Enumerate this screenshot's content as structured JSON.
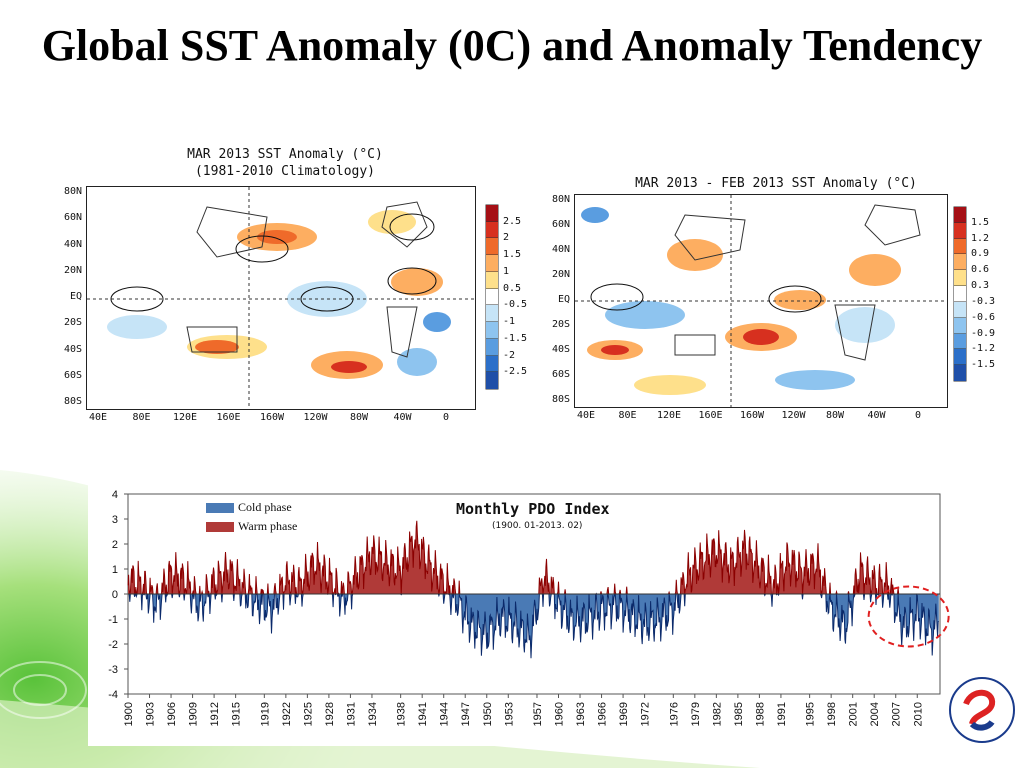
{
  "slide": {
    "title": "Global SST Anomaly (0C) and Anomaly Tendency"
  },
  "colors": {
    "warm": "#b03a38",
    "cold": "#4a7ab5",
    "warm_edge": "#8b0000",
    "cold_edge": "#0b2a6b",
    "highlight_ring": "#e02020"
  },
  "chart_data": [
    {
      "type": "heatmap",
      "title": "MAR 2013 SST Anomaly (°C)",
      "subtitle": "(1981-2010 Climatology)",
      "y_ticks": [
        "80N",
        "60N",
        "40N",
        "20N",
        "EQ",
        "20S",
        "40S",
        "60S",
        "80S"
      ],
      "x_ticks": [
        "40E",
        "80E",
        "120E",
        "160E",
        "160W",
        "120W",
        "80W",
        "40W",
        "0"
      ],
      "colorbar": [
        "2.5",
        "2",
        "1.5",
        "1",
        "0.5",
        "-0.5",
        "-1",
        "-1.5",
        "-2",
        "-2.5"
      ],
      "colorbar_colors": [
        "#a50f15",
        "#d7301f",
        "#ef6a2a",
        "#fdae61",
        "#fee08b",
        "#ffffff",
        "#c6e4f7",
        "#8ec4ef",
        "#5a9de0",
        "#2b6fc9",
        "#1f4fa8"
      ]
    },
    {
      "type": "heatmap",
      "title": "MAR 2013 - FEB 2013 SST Anomaly (°C)",
      "y_ticks": [
        "80N",
        "60N",
        "40N",
        "20N",
        "EQ",
        "20S",
        "40S",
        "60S",
        "80S"
      ],
      "x_ticks": [
        "40E",
        "80E",
        "120E",
        "160E",
        "160W",
        "120W",
        "80W",
        "40W",
        "0"
      ],
      "colorbar": [
        "1.5",
        "1.2",
        "0.9",
        "0.6",
        "0.3",
        "-0.3",
        "-0.6",
        "-0.9",
        "-1.2",
        "-1.5"
      ],
      "colorbar_colors": [
        "#a50f15",
        "#d7301f",
        "#ef6a2a",
        "#fdae61",
        "#fee08b",
        "#ffffff",
        "#c6e4f7",
        "#8ec4ef",
        "#5a9de0",
        "#2b6fc9",
        "#1f4fa8"
      ]
    },
    {
      "type": "area",
      "title": "Monthly PDO Index",
      "subtitle": "(1900. 01-2013. 02)",
      "legend": [
        "Cold phase",
        "Warm phase"
      ],
      "legend_position": "top-left",
      "ylim": [
        -4,
        4
      ],
      "y_ticks": [
        4,
        3,
        2,
        1,
        0,
        -1,
        -2,
        -3,
        -4
      ],
      "x_ticks": [
        "1900",
        "1903",
        "1906",
        "1909",
        "1912",
        "1915",
        "1919",
        "1922",
        "1925",
        "1928",
        "1931",
        "1934",
        "1938",
        "1941",
        "1944",
        "1947",
        "1950",
        "1953",
        "1957",
        "1960",
        "1963",
        "1966",
        "1969",
        "1972",
        "1976",
        "1979",
        "1982",
        "1985",
        "1988",
        "1991",
        "1995",
        "1998",
        "2001",
        "2004",
        "2007",
        "2010"
      ],
      "x_start_year": 1900,
      "x_end_year": 2013.17,
      "series_keypoints": {
        "year": [
          1900,
          1902,
          1904,
          1906,
          1908,
          1910,
          1912,
          1914,
          1916,
          1918,
          1920,
          1922,
          1924,
          1926,
          1928,
          1930,
          1932,
          1934,
          1936,
          1938,
          1940,
          1942,
          1944,
          1946,
          1948,
          1950,
          1952,
          1954,
          1956,
          1958,
          1960,
          1962,
          1964,
          1966,
          1968,
          1970,
          1972,
          1974,
          1976,
          1978,
          1980,
          1982,
          1984,
          1986,
          1988,
          1990,
          1992,
          1994,
          1996,
          1998,
          2000,
          2002,
          2004,
          2006,
          2008,
          2010,
          2012,
          2013
        ],
        "value": [
          0.6,
          0.3,
          -0.4,
          0.8,
          0.5,
          -0.5,
          0.4,
          0.9,
          0.2,
          -0.3,
          -0.6,
          0.5,
          0.3,
          1.2,
          0.6,
          -0.2,
          0.8,
          1.6,
          1.2,
          0.9,
          2.2,
          1.1,
          0.4,
          -0.3,
          -1.3,
          -1.6,
          -0.9,
          -1.2,
          -1.8,
          0.7,
          -0.4,
          -1.1,
          -1.0,
          -0.6,
          -0.4,
          -0.8,
          -1.2,
          -1.0,
          -0.6,
          0.7,
          1.3,
          1.7,
          1.1,
          1.8,
          1.0,
          0.3,
          1.3,
          0.8,
          1.2,
          -0.6,
          -1.3,
          0.9,
          0.4,
          0.3,
          -1.3,
          -0.8,
          -1.5,
          -1.1
        ]
      }
    }
  ]
}
